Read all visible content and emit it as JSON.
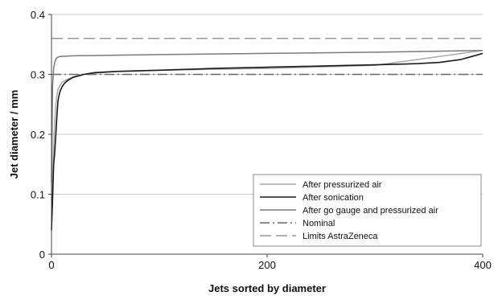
{
  "chart_data": {
    "type": "line",
    "xlabel": "Jets sorted by diameter",
    "ylabel": "Jet diameter / mm",
    "xlim": [
      0,
      400
    ],
    "ylim": [
      0,
      0.4
    ],
    "x_ticks": [
      "0",
      "200",
      "400"
    ],
    "y_ticks": [
      "0",
      "0.1",
      "0.2",
      "0.3",
      "0.4"
    ],
    "grid": "horizontal",
    "legend_position": "bottom-right",
    "series": [
      {
        "name": "After pressurized air",
        "color": "#a9a9a9",
        "style": "solid",
        "x": [
          0,
          1,
          2,
          3,
          4,
          5,
          6,
          8,
          10,
          15,
          20,
          30,
          40,
          60,
          100,
          200,
          300,
          400
        ],
        "y": [
          0.05,
          0.12,
          0.18,
          0.22,
          0.25,
          0.265,
          0.275,
          0.282,
          0.287,
          0.292,
          0.296,
          0.3,
          0.302,
          0.305,
          0.307,
          0.31,
          0.315,
          0.34
        ]
      },
      {
        "name": "After sonication",
        "color": "#1a1a1a",
        "style": "solid",
        "x": [
          0,
          1,
          2,
          3,
          4,
          5,
          6,
          7,
          8,
          10,
          12,
          15,
          20,
          30,
          40,
          60,
          100,
          150,
          200,
          250,
          300,
          340,
          360,
          380,
          390,
          400
        ],
        "y": [
          0.04,
          0.09,
          0.15,
          0.17,
          0.2,
          0.23,
          0.255,
          0.265,
          0.272,
          0.28,
          0.285,
          0.29,
          0.295,
          0.3,
          0.303,
          0.305,
          0.307,
          0.31,
          0.312,
          0.314,
          0.316,
          0.318,
          0.32,
          0.325,
          0.33,
          0.335
        ]
      },
      {
        "name": "After go gauge and pressurized air",
        "color": "#7a7a7a",
        "style": "solid",
        "x": [
          0,
          1,
          2,
          3,
          4,
          5,
          8,
          20,
          100,
          200,
          300,
          400
        ],
        "y": [
          0.12,
          0.28,
          0.31,
          0.32,
          0.325,
          0.328,
          0.33,
          0.331,
          0.333,
          0.335,
          0.337,
          0.34
        ]
      },
      {
        "name": "Nominal",
        "color": "#666666",
        "style": "dashdot",
        "x": [
          0,
          400
        ],
        "y": [
          0.3,
          0.3
        ]
      },
      {
        "name": "Limits AstraZeneca",
        "color": "#999999",
        "style": "dashed",
        "x": [
          0,
          400
        ],
        "y": [
          0.36,
          0.36
        ]
      }
    ]
  }
}
